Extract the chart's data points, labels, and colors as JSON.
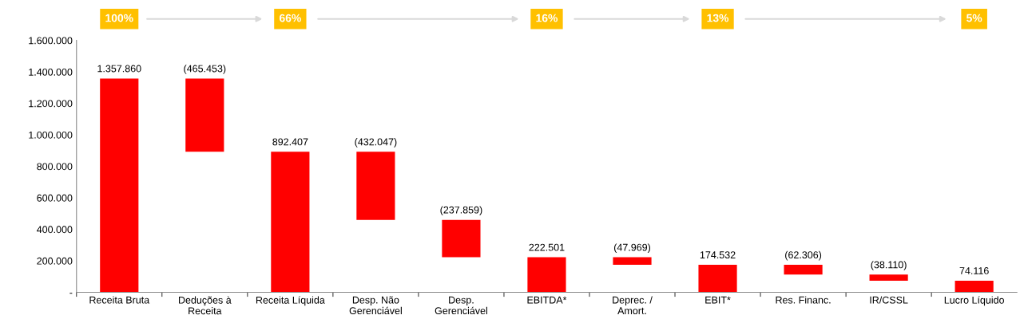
{
  "chart_data": {
    "type": "bar",
    "categories": [
      "Receita Bruta",
      "Deduções à\nReceita",
      "Receita Líquida",
      "Desp. Não\nGerenciável",
      "Desp.\nGerenciável",
      "EBITDA*",
      "Deprec. /\nAmort.",
      "EBIT*",
      "Res. Financ.",
      "IR/CSSL",
      "Lucro Líquido"
    ],
    "values": [
      1357860,
      -465453,
      892407,
      -432047,
      -237859,
      222501,
      -47969,
      174532,
      -62306,
      -38110,
      74116
    ],
    "base": [
      0,
      1357860,
      0,
      892407,
      460360,
      0,
      222501,
      0,
      174532,
      112226,
      0
    ],
    "value_labels": [
      "1.357.860",
      "(465.453)",
      "892.407",
      "(432.047)",
      "(237.859)",
      "222.501",
      "(47.969)",
      "174.532",
      "(62.306)",
      "(38.110)",
      "74.116"
    ],
    "color": "#ff0000",
    "ylim": [
      0,
      1600000
    ],
    "yticks": [
      {
        "value": 0,
        "label": "-"
      },
      {
        "value": 200000,
        "label": "200.000"
      },
      {
        "value": 400000,
        "label": "400.000"
      },
      {
        "value": 600000,
        "label": "600.000"
      },
      {
        "value": 800000,
        "label": "800.000"
      },
      {
        "value": 1000000,
        "label": "1.000.000"
      },
      {
        "value": 1200000,
        "label": "1.200.000"
      },
      {
        "value": 1400000,
        "label": "1.400.000"
      },
      {
        "value": 1600000,
        "label": "1.600.000"
      }
    ],
    "grid": false,
    "annotations": [
      "100%",
      "66%",
      "16%",
      "13%",
      "5%"
    ]
  }
}
